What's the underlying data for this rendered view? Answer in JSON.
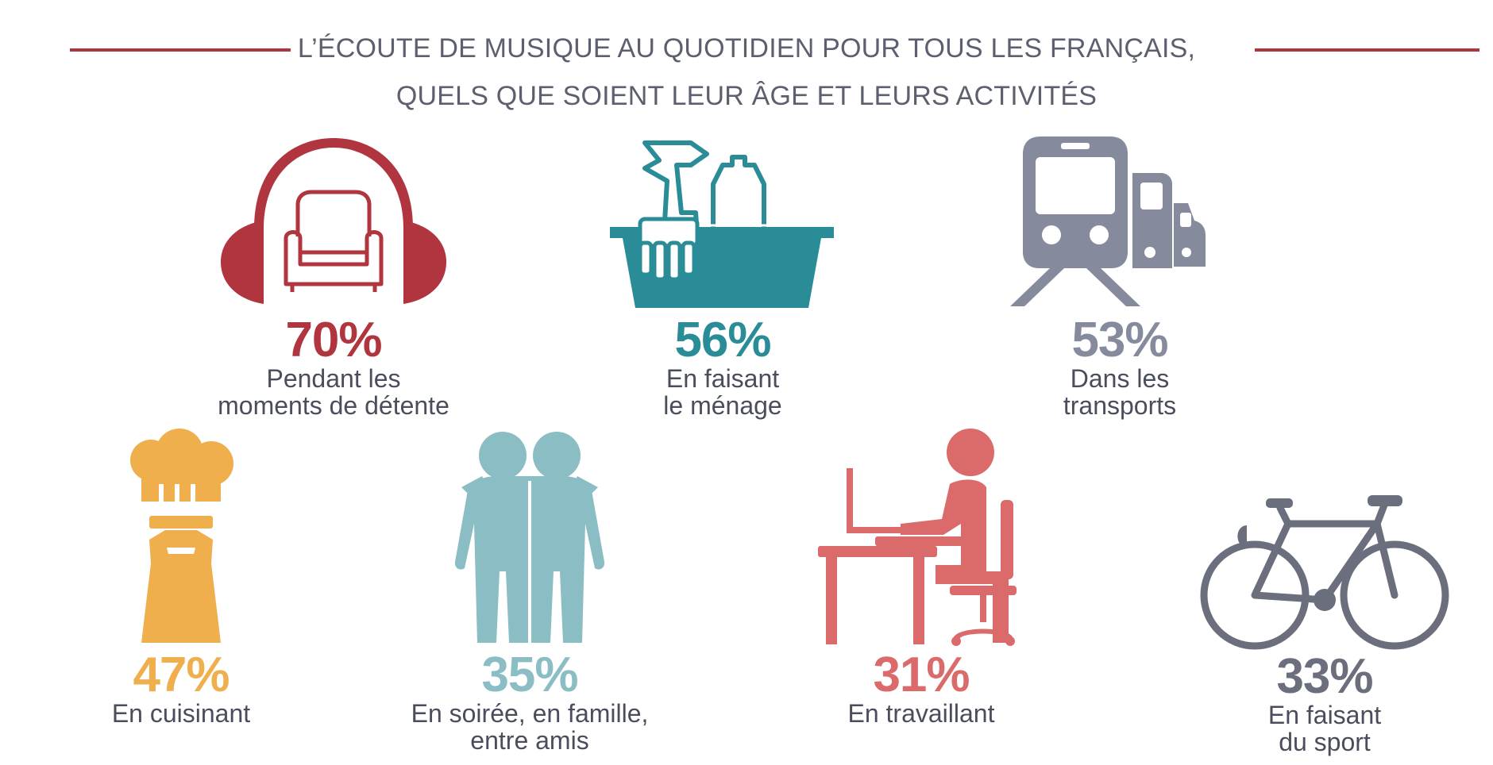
{
  "header": {
    "line1": "L’ÉCOUTE DE MUSIQUE AU QUOTIDIEN POUR TOUS LES FRANÇAIS,",
    "line2": "QUELS QUE SOIENT LEUR ÂGE ET LEURS ACTIVITÉS",
    "rule_color": "#b1353e"
  },
  "stats": [
    {
      "value": 70,
      "percent": "70%",
      "label_line1": "Pendant les",
      "label_line2": "moments de détente",
      "color": "#b1353e",
      "icon": "headphones-armchair-icon"
    },
    {
      "value": 56,
      "percent": "56%",
      "label_line1": "En faisant",
      "label_line2": "le ménage",
      "color": "#2a8c97",
      "icon": "cleaning-bucket-icon"
    },
    {
      "value": 53,
      "percent": "53%",
      "label_line1": "Dans les",
      "label_line2": "transports",
      "color": "#858b9c",
      "icon": "train-truck-car-icon"
    },
    {
      "value": 47,
      "percent": "47%",
      "label_line1": "En cuisinant",
      "label_line2": "",
      "color": "#efaf4c",
      "icon": "chef-icon"
    },
    {
      "value": 35,
      "percent": "35%",
      "label_line1": "En soirée, en famille,",
      "label_line2": "entre amis",
      "color": "#8bbdc4",
      "icon": "two-friends-icon"
    },
    {
      "value": 31,
      "percent": "31%",
      "label_line1": "En travaillant",
      "label_line2": "",
      "color": "#db6b6b",
      "icon": "person-at-desk-icon"
    },
    {
      "value": 33,
      "percent": "33%",
      "label_line1": "En faisant",
      "label_line2": "du sport",
      "color": "#6b6e7c",
      "icon": "bicycle-icon"
    }
  ]
}
